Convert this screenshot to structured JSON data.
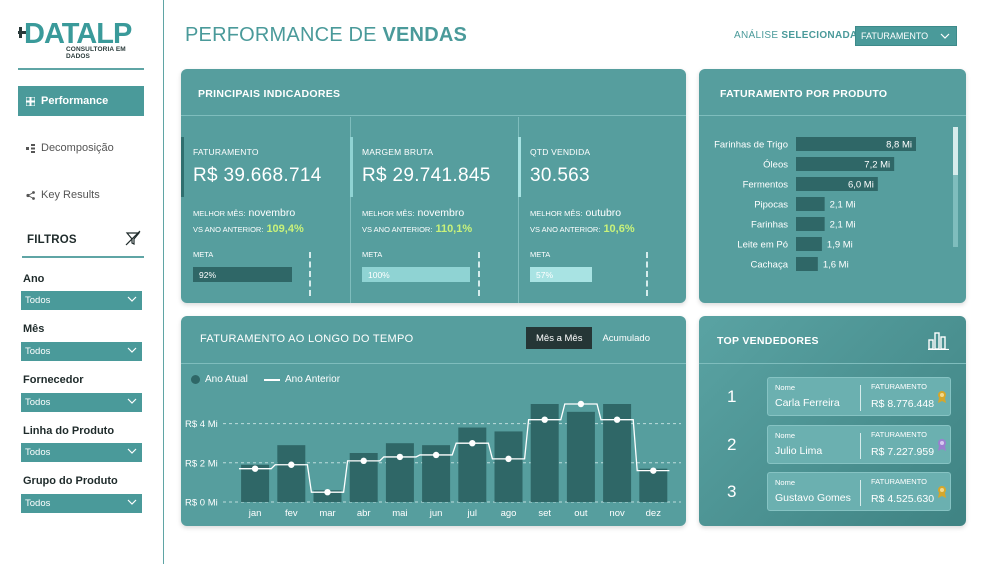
{
  "logo": {
    "word": "DATALP",
    "subtitle": "CONSULTORIA EM DADOS"
  },
  "nav": [
    {
      "label": "Performance",
      "icon": "grid-icon",
      "active": true
    },
    {
      "label": "Decomposição",
      "icon": "decomposition-icon",
      "active": false
    },
    {
      "label": "Key Results",
      "icon": "network-icon",
      "active": false
    }
  ],
  "filters": {
    "title": "FILTROS",
    "items": [
      {
        "label": "Ano",
        "value": "Todos"
      },
      {
        "label": "Mês",
        "value": "Todos"
      },
      {
        "label": "Fornecedor",
        "value": "Todos"
      },
      {
        "label": "Linha do Produto",
        "value": "Todos"
      },
      {
        "label": "Grupo do Produto",
        "value": "Todos"
      }
    ]
  },
  "header": {
    "title_light": "PERFORMANCE DE ",
    "title_bold": "VENDAS",
    "analysis_label": "ANÁLISE ",
    "analysis_label_bold": "SELECIONADA:",
    "analysis_value": "FATURAMENTO"
  },
  "indicators": {
    "title": "PRINCIPAIS INDICADORES",
    "kpis": [
      {
        "name": "FATURAMENTO",
        "value": "R$ 39.668.714",
        "best_label": "MELHOR MÊS:",
        "best": "novembro",
        "vs_label": "VS ANO ANTERIOR:",
        "vs": "109,4%",
        "meta_label": "META",
        "meta_text": "92%",
        "meta_pct": 0.92
      },
      {
        "name": "MARGEM BRUTA",
        "value": "R$ 29.741.845",
        "best_label": "MELHOR MÊS:",
        "best": "novembro",
        "vs_label": "VS ANO ANTERIOR:",
        "vs": "110,1%",
        "meta_label": "META",
        "meta_text": "100%",
        "meta_pct": 1.0
      },
      {
        "name": "QTD VENDIDA",
        "value": "30.563",
        "best_label": "MELHOR MÊS:",
        "best": "outubro",
        "vs_label": "VS ANO ANTERIOR:",
        "vs": "10,6%",
        "meta_label": "META",
        "meta_text": "57%",
        "meta_pct": 0.57
      }
    ]
  },
  "products": {
    "title": "FATURAMENTO POR PRODUTO",
    "items": [
      {
        "label": "Farinhas de Trigo",
        "value": 8.8,
        "text": "8,8 Mi"
      },
      {
        "label": "Óleos",
        "value": 7.2,
        "text": "7,2 Mi"
      },
      {
        "label": "Fermentos",
        "value": 6.0,
        "text": "6,0 Mi"
      },
      {
        "label": "Pipocas",
        "value": 2.1,
        "text": "2,1 Mi"
      },
      {
        "label": "Farinhas",
        "value": 2.1,
        "text": "2,1 Mi"
      },
      {
        "label": "Leite em Pó",
        "value": 1.9,
        "text": "1,9 Mi"
      },
      {
        "label": "Cachaça",
        "value": 1.6,
        "text": "1,6 Mi"
      }
    ]
  },
  "time_chart": {
    "title": "FATURAMENTO AO LONGO DO TEMPO",
    "tabs": [
      {
        "label": "Mês a Mês",
        "active": true
      },
      {
        "label": "Acumulado",
        "active": false
      }
    ]
  },
  "chart_data": {
    "type": "bar",
    "categories": [
      "jan",
      "fev",
      "mar",
      "abr",
      "mai",
      "jun",
      "jul",
      "ago",
      "set",
      "out",
      "nov",
      "dez"
    ],
    "series": [
      {
        "name": "Ano Atual",
        "values": [
          1.9,
          2.9,
          0.6,
          2.5,
          3.0,
          2.9,
          3.8,
          3.6,
          5.0,
          4.6,
          5.0,
          1.7
        ]
      },
      {
        "name": "Ano Anterior",
        "values": [
          1.7,
          1.9,
          0.5,
          2.1,
          2.3,
          2.4,
          3.0,
          2.2,
          4.2,
          5.0,
          4.2,
          1.6
        ]
      }
    ],
    "y_ticks": [
      "R$ 0 Mi",
      "R$ 2 Mi",
      "R$ 4 Mi"
    ],
    "ylim": [
      0,
      5
    ],
    "grid": true,
    "legend": "top-left"
  },
  "sellers": {
    "title": "TOP VENDEDORES",
    "name_label": "Nome",
    "value_label": "FATURAMENTO",
    "items": [
      {
        "rank": "1",
        "name": "Carla Ferreira",
        "value": "R$ 8.776.448",
        "medal_color": "#d4a72c"
      },
      {
        "rank": "2",
        "name": "Julio Lima",
        "value": "R$ 7.227.959",
        "medal_color": "#9b7fd0"
      },
      {
        "rank": "3",
        "name": "Gustavo Gomes",
        "value": "R$ 4.525.630",
        "medal_color": "#d4a72c"
      }
    ]
  },
  "colors": {
    "primary": "#4a9a9a",
    "card": "#569e9e",
    "bar_dark": "#2f6767",
    "positive": "#c9f27a"
  }
}
